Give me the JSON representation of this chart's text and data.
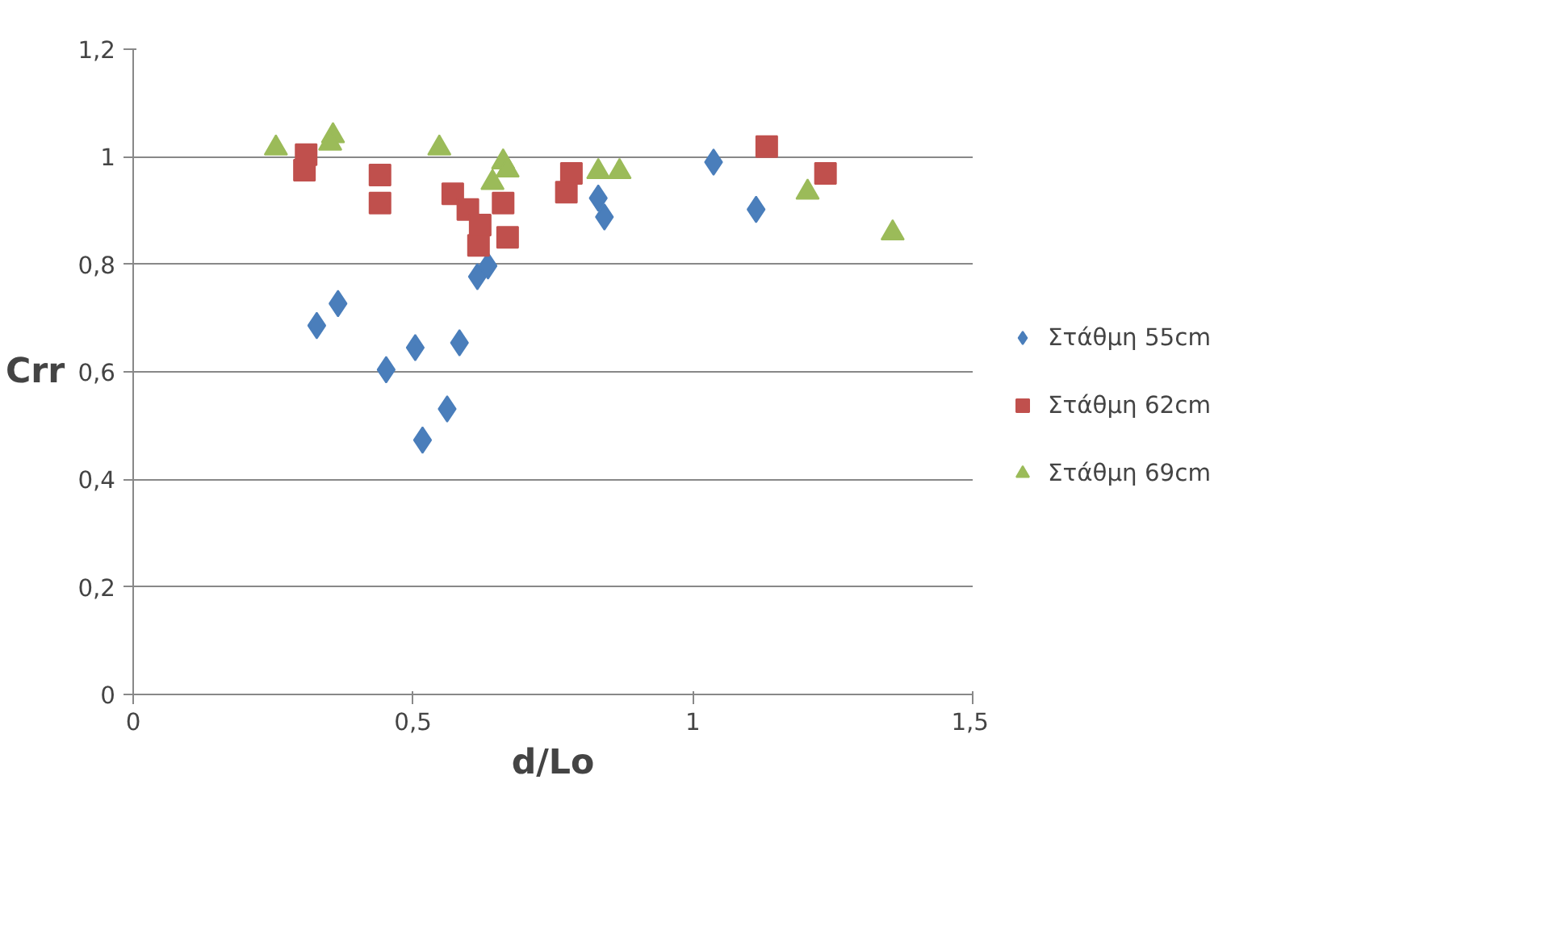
{
  "chart_data": {
    "type": "scatter",
    "xlabel": "d/Lo",
    "ylabel": "Crr",
    "xlim": [
      0,
      1.5
    ],
    "ylim": [
      0,
      1.2
    ],
    "xticks": [
      0,
      {
        "value": 0.5,
        "label": "0,5"
      },
      1,
      {
        "value": 1.5,
        "label": "1,5"
      }
    ],
    "yticks": [
      0,
      {
        "value": 0.2,
        "label": "0,2"
      },
      {
        "value": 0.4,
        "label": "0,4"
      },
      {
        "value": 0.6,
        "label": "0,6"
      },
      {
        "value": 0.8,
        "label": "0,8"
      },
      1,
      {
        "value": 1.2,
        "label": "1,2"
      }
    ],
    "grid": "y",
    "legend": "right",
    "series": [
      {
        "name": "Στάθμη 55cm",
        "color": "#4a7ebb",
        "marker": "diamond",
        "x": [
          0.328,
          0.366,
          0.452,
          0.504,
          0.583,
          0.517,
          0.561,
          0.615,
          0.634,
          0.831,
          0.842,
          1.037,
          1.113
        ],
        "values": [
          0.686,
          0.727,
          0.604,
          0.645,
          0.654,
          0.473,
          0.531,
          0.777,
          0.797,
          0.923,
          0.888,
          0.99,
          0.902
        ]
      },
      {
        "name": "Στάθμη 62cm",
        "color": "#c0504d",
        "marker": "square",
        "x": [
          0.309,
          0.306,
          0.441,
          0.441,
          0.571,
          0.598,
          0.661,
          0.62,
          0.617,
          0.669,
          0.783,
          0.774,
          1.132,
          1.237
        ],
        "values": [
          1.004,
          0.975,
          0.966,
          0.914,
          0.931,
          0.902,
          0.914,
          0.873,
          0.835,
          0.85,
          0.969,
          0.934,
          1.019,
          0.969
        ]
      },
      {
        "name": "Στάθμη 69cm",
        "color": "#9bbb59",
        "marker": "triangle",
        "x": [
          0.255,
          0.357,
          0.352,
          0.547,
          0.661,
          0.642,
          0.669,
          0.831,
          0.869,
          1.205,
          1.357
        ],
        "values": [
          1.016,
          1.039,
          1.025,
          1.016,
          0.99,
          0.952,
          0.975,
          0.972,
          0.972,
          0.934,
          0.858
        ]
      }
    ]
  }
}
